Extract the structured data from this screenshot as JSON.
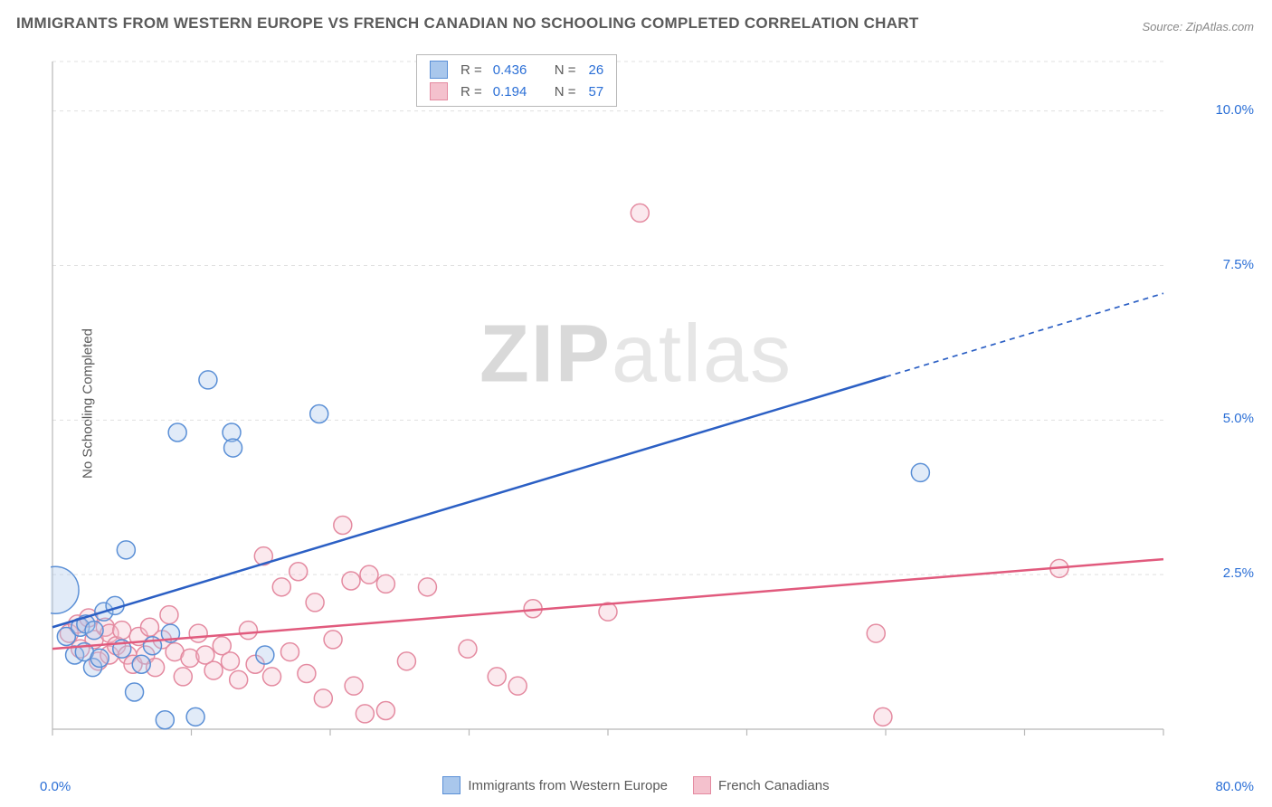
{
  "title": "IMMIGRANTS FROM WESTERN EUROPE VS FRENCH CANADIAN NO SCHOOLING COMPLETED CORRELATION CHART",
  "source": "Source: ZipAtlas.com",
  "ylabel": "No Schooling Completed",
  "watermark": {
    "zip": "ZIP",
    "atlas": "atlas"
  },
  "chart": {
    "type": "scatter",
    "background_color": "#ffffff",
    "grid_color": "#e0e0e0",
    "grid_dash": "4,4",
    "axis_color": "#b8b8b8",
    "text_color": "#5a5a5a",
    "value_color": "#2b6fd6",
    "xlim": [
      0,
      80
    ],
    "ylim": [
      0,
      10.8
    ],
    "x_ticks_label_start": "0.0%",
    "x_ticks_label_end": "80.0%",
    "x_tick_positions": [
      0,
      10,
      20,
      30,
      40,
      50,
      60,
      70,
      80
    ],
    "y_ticks": [
      2.5,
      5.0,
      7.5,
      10.0
    ],
    "y_tick_labels": [
      "2.5%",
      "5.0%",
      "7.5%",
      "10.0%"
    ],
    "marker_radius": 10,
    "marker_stroke_width": 1.5,
    "marker_fill_opacity": 0.35,
    "trend_line_width": 2.5,
    "trend_dash_extension": "6,5"
  },
  "series": [
    {
      "name": "Immigrants from Western Europe",
      "color_stroke": "#5a8fd6",
      "color_fill": "#a9c7ec",
      "trend_color": "#2b5fc4",
      "R": "0.436",
      "N": "26",
      "trend_line": {
        "x1": 0,
        "y1": 1.65,
        "x2": 60,
        "y2": 5.7,
        "ext_x2": 80,
        "ext_y2": 7.05
      },
      "points": [
        {
          "x": 0.2,
          "y": 2.25,
          "r": 26
        },
        {
          "x": 1.0,
          "y": 1.5
        },
        {
          "x": 1.6,
          "y": 1.2
        },
        {
          "x": 2.0,
          "y": 1.65
        },
        {
          "x": 2.3,
          "y": 1.25
        },
        {
          "x": 2.4,
          "y": 1.7
        },
        {
          "x": 2.9,
          "y": 1.0
        },
        {
          "x": 3.0,
          "y": 1.6
        },
        {
          "x": 3.4,
          "y": 1.15
        },
        {
          "x": 3.7,
          "y": 1.9
        },
        {
          "x": 4.5,
          "y": 2.0
        },
        {
          "x": 5.0,
          "y": 1.3
        },
        {
          "x": 5.9,
          "y": 0.6
        },
        {
          "x": 5.3,
          "y": 2.9
        },
        {
          "x": 6.4,
          "y": 1.05
        },
        {
          "x": 7.2,
          "y": 1.35
        },
        {
          "x": 8.1,
          "y": 0.15
        },
        {
          "x": 8.5,
          "y": 1.55
        },
        {
          "x": 10.3,
          "y": 0.2
        },
        {
          "x": 9.0,
          "y": 4.8
        },
        {
          "x": 11.2,
          "y": 5.65
        },
        {
          "x": 12.9,
          "y": 4.8
        },
        {
          "x": 13.0,
          "y": 4.55
        },
        {
          "x": 15.3,
          "y": 1.2
        },
        {
          "x": 19.2,
          "y": 5.1
        },
        {
          "x": 62.5,
          "y": 4.15
        }
      ]
    },
    {
      "name": "French Canadians",
      "color_stroke": "#e48aa0",
      "color_fill": "#f4c1cd",
      "trend_color": "#e15a7d",
      "R": "0.194",
      "N": "57",
      "trend_line": {
        "x1": 0,
        "y1": 1.3,
        "x2": 80,
        "y2": 2.75
      },
      "points": [
        {
          "x": 1.2,
          "y": 1.55
        },
        {
          "x": 1.8,
          "y": 1.7
        },
        {
          "x": 2.0,
          "y": 1.3
        },
        {
          "x": 2.6,
          "y": 1.8
        },
        {
          "x": 3.0,
          "y": 1.45
        },
        {
          "x": 3.3,
          "y": 1.1
        },
        {
          "x": 3.8,
          "y": 1.65
        },
        {
          "x": 4.1,
          "y": 1.55
        },
        {
          "x": 4.1,
          "y": 1.2
        },
        {
          "x": 4.6,
          "y": 1.35
        },
        {
          "x": 5.0,
          "y": 1.6
        },
        {
          "x": 5.4,
          "y": 1.2
        },
        {
          "x": 5.8,
          "y": 1.05
        },
        {
          "x": 6.2,
          "y": 1.5
        },
        {
          "x": 6.7,
          "y": 1.2
        },
        {
          "x": 7.0,
          "y": 1.65
        },
        {
          "x": 7.4,
          "y": 1.0
        },
        {
          "x": 7.9,
          "y": 1.45
        },
        {
          "x": 8.4,
          "y": 1.85
        },
        {
          "x": 8.8,
          "y": 1.25
        },
        {
          "x": 9.4,
          "y": 0.85
        },
        {
          "x": 9.9,
          "y": 1.15
        },
        {
          "x": 10.5,
          "y": 1.55
        },
        {
          "x": 11.0,
          "y": 1.2
        },
        {
          "x": 11.6,
          "y": 0.95
        },
        {
          "x": 12.2,
          "y": 1.35
        },
        {
          "x": 12.8,
          "y": 1.1
        },
        {
          "x": 13.4,
          "y": 0.8
        },
        {
          "x": 14.1,
          "y": 1.6
        },
        {
          "x": 14.6,
          "y": 1.05
        },
        {
          "x": 15.2,
          "y": 2.8
        },
        {
          "x": 15.8,
          "y": 0.85
        },
        {
          "x": 16.5,
          "y": 2.3
        },
        {
          "x": 17.1,
          "y": 1.25
        },
        {
          "x": 17.7,
          "y": 2.55
        },
        {
          "x": 18.3,
          "y": 0.9
        },
        {
          "x": 18.9,
          "y": 2.05
        },
        {
          "x": 19.5,
          "y": 0.5
        },
        {
          "x": 20.2,
          "y": 1.45
        },
        {
          "x": 20.9,
          "y": 3.3
        },
        {
          "x": 21.5,
          "y": 2.4
        },
        {
          "x": 21.7,
          "y": 0.7
        },
        {
          "x": 22.8,
          "y": 2.5
        },
        {
          "x": 22.5,
          "y": 0.25
        },
        {
          "x": 24.0,
          "y": 0.3
        },
        {
          "x": 24.0,
          "y": 2.35
        },
        {
          "x": 25.5,
          "y": 1.1
        },
        {
          "x": 27.0,
          "y": 2.3
        },
        {
          "x": 29.9,
          "y": 1.3
        },
        {
          "x": 32.0,
          "y": 0.85
        },
        {
          "x": 33.5,
          "y": 0.7
        },
        {
          "x": 34.6,
          "y": 1.95
        },
        {
          "x": 40.0,
          "y": 1.9
        },
        {
          "x": 42.3,
          "y": 8.35
        },
        {
          "x": 59.3,
          "y": 1.55
        },
        {
          "x": 59.8,
          "y": 0.2
        },
        {
          "x": 72.5,
          "y": 2.6
        }
      ]
    }
  ],
  "bottom_legend": [
    {
      "swatch_fill": "#a9c7ec",
      "swatch_stroke": "#5a8fd6",
      "label": "Immigrants from Western Europe"
    },
    {
      "swatch_fill": "#f4c1cd",
      "swatch_stroke": "#e48aa0",
      "label": "French Canadians"
    }
  ]
}
